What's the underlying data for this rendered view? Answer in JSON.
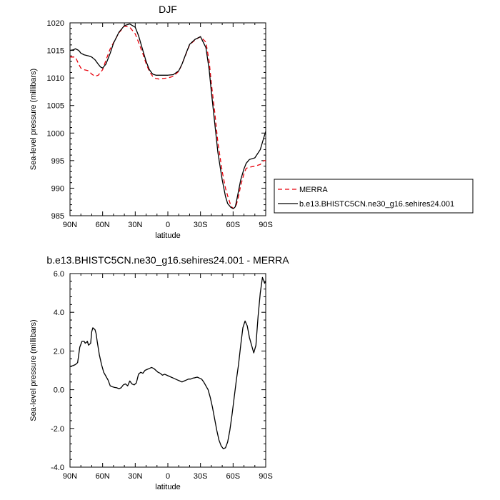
{
  "chart_data": [
    {
      "type": "line",
      "title": "DJF",
      "xlabel": "latitude",
      "ylabel": "Sea-level pressure (millibars)",
      "x_ticks": [
        "90N",
        "60N",
        "30N",
        "0",
        "30S",
        "60S",
        "90S"
      ],
      "x_tick_values": [
        -90,
        -60,
        -30,
        0,
        30,
        60,
        90
      ],
      "xlim": [
        -90,
        90
      ],
      "ylim": [
        985,
        1020
      ],
      "y_ticks": [
        "985",
        "990",
        "995",
        "1000",
        "1005",
        "1010",
        "1015",
        "1020"
      ],
      "y_tick_values": [
        985,
        990,
        995,
        1000,
        1005,
        1010,
        1015,
        1020
      ],
      "legend_position": "outside-right",
      "series": [
        {
          "name": "MERRA",
          "color": "#e8000b",
          "style": "dashed",
          "x": [
            -90,
            -87,
            -85,
            -82,
            -80,
            -77,
            -73,
            -70,
            -67,
            -64,
            -62,
            -60,
            -57,
            -53,
            -50,
            -45,
            -40,
            -35,
            -30,
            -27,
            -23,
            -20,
            -17,
            -14,
            -11,
            -8,
            -5,
            0,
            5,
            10,
            13,
            17,
            20,
            25,
            30,
            35,
            38,
            40,
            43,
            46,
            50,
            53,
            55,
            58,
            60,
            62,
            63,
            65,
            67,
            70,
            72,
            75,
            80,
            85,
            88,
            90
          ],
          "y": [
            1013.8,
            1013.8,
            1013.8,
            1012.5,
            1011.8,
            1011.5,
            1011.3,
            1010.7,
            1010.3,
            1010.5,
            1011.0,
            1011.5,
            1013.2,
            1015.3,
            1016.4,
            1018.2,
            1019.4,
            1019.2,
            1018.0,
            1016.5,
            1014.4,
            1012.6,
            1011.2,
            1010.3,
            1009.9,
            1009.8,
            1009.9,
            1010.0,
            1010.3,
            1011.2,
            1012.5,
            1014.5,
            1016.0,
            1016.9,
            1017.5,
            1016.5,
            1013.0,
            1009.0,
            1004.0,
            998.3,
            993.0,
            990.0,
            988.6,
            986.8,
            986.3,
            986.5,
            987.0,
            988.5,
            990.5,
            992.6,
            993.6,
            993.8,
            994.0,
            994.3,
            995.0,
            995.0
          ]
        },
        {
          "name": "b.e13.BHISTC5CN.ne30_g16.sehires24.001",
          "color": "#000000",
          "style": "solid",
          "x": [
            -90,
            -87,
            -85,
            -82,
            -80,
            -77,
            -73,
            -70,
            -67,
            -64,
            -62,
            -60,
            -57,
            -53,
            -50,
            -45,
            -40,
            -35,
            -30,
            -27,
            -23,
            -20,
            -17,
            -14,
            -11,
            -8,
            -5,
            0,
            5,
            10,
            13,
            17,
            20,
            25,
            30,
            35,
            38,
            40,
            43,
            46,
            50,
            53,
            55,
            58,
            60,
            62,
            63,
            65,
            67,
            70,
            72,
            75,
            80,
            85,
            88,
            90
          ],
          "y": [
            1015.0,
            1015.1,
            1015.3,
            1015.0,
            1014.5,
            1014.2,
            1014.0,
            1013.8,
            1013.3,
            1012.5,
            1012.0,
            1011.8,
            1012.5,
            1014.5,
            1016.3,
            1018.3,
            1019.5,
            1019.8,
            1019.2,
            1017.7,
            1015.0,
            1013.0,
            1011.5,
            1010.7,
            1010.5,
            1010.5,
            1010.5,
            1010.5,
            1010.6,
            1011.3,
            1012.5,
            1014.6,
            1016.1,
            1017.0,
            1017.5,
            1015.5,
            1011.5,
            1007.5,
            1002.0,
            996.5,
            991.5,
            988.5,
            987.2,
            986.5,
            986.3,
            986.6,
            987.5,
            989.5,
            991.5,
            993.5,
            994.5,
            995.2,
            995.5,
            997.0,
            999.0,
            1000.3
          ]
        }
      ]
    },
    {
      "type": "line",
      "title": "b.e13.BHISTC5CN.ne30_g16.sehires24.001 - MERRA",
      "xlabel": "latitude",
      "ylabel": "Sea-level pressure (millibars)",
      "x_ticks": [
        "90N",
        "60N",
        "30N",
        "0",
        "30S",
        "60S",
        "90S"
      ],
      "x_tick_values": [
        -90,
        -60,
        -30,
        0,
        30,
        60,
        90
      ],
      "xlim": [
        -90,
        90
      ],
      "ylim": [
        -4.0,
        6.0
      ],
      "y_ticks": [
        "-4.0",
        "-2.0",
        "0.0",
        "2.0",
        "4.0",
        "6.0"
      ],
      "y_tick_values": [
        -4.0,
        -2.0,
        0.0,
        2.0,
        4.0,
        6.0
      ],
      "series": [
        {
          "name": "",
          "color": "#000000",
          "style": "solid",
          "x": [
            -90,
            -87,
            -85,
            -83,
            -81,
            -79,
            -77,
            -76,
            -74,
            -73,
            -72,
            -71,
            -70,
            -69,
            -68,
            -67,
            -66,
            -65,
            -63,
            -61,
            -59,
            -57,
            -55,
            -53,
            -51,
            -49,
            -47,
            -45,
            -43,
            -41,
            -39,
            -37,
            -35,
            -33,
            -31,
            -29,
            -27,
            -25,
            -23,
            -21,
            -19,
            -17,
            -15,
            -13,
            -11,
            -9,
            -7,
            -5,
            -3,
            -1,
            1,
            3,
            5,
            7,
            9,
            11,
            13,
            15,
            17,
            19,
            21,
            23,
            25,
            27,
            29,
            31,
            33,
            35,
            37,
            39,
            41,
            43,
            45,
            47,
            49,
            51,
            53,
            55,
            57,
            59,
            61,
            63,
            65,
            67,
            69,
            71,
            73,
            75,
            77,
            79,
            81,
            83,
            85,
            87,
            89,
            90
          ],
          "y": [
            1.2,
            1.25,
            1.3,
            1.4,
            2.2,
            2.5,
            2.5,
            2.4,
            2.5,
            2.3,
            2.35,
            2.4,
            3.0,
            3.2,
            3.15,
            3.1,
            2.9,
            2.5,
            1.8,
            1.3,
            0.9,
            0.7,
            0.5,
            0.2,
            0.15,
            0.12,
            0.1,
            0.05,
            0.1,
            0.25,
            0.3,
            0.2,
            0.45,
            0.3,
            0.25,
            0.35,
            0.8,
            0.9,
            0.85,
            1.0,
            1.05,
            1.1,
            1.15,
            1.1,
            1.0,
            0.9,
            0.85,
            0.75,
            0.8,
            0.75,
            0.7,
            0.65,
            0.6,
            0.55,
            0.5,
            0.45,
            0.4,
            0.45,
            0.5,
            0.55,
            0.55,
            0.6,
            0.62,
            0.65,
            0.6,
            0.55,
            0.4,
            0.2,
            0.0,
            -0.4,
            -0.9,
            -1.5,
            -2.1,
            -2.6,
            -2.9,
            -3.05,
            -3.0,
            -2.7,
            -2.1,
            -1.3,
            -0.4,
            0.5,
            1.3,
            2.3,
            3.2,
            3.55,
            3.3,
            2.7,
            2.3,
            1.9,
            2.3,
            3.8,
            5.0,
            5.8,
            5.5,
            5.6
          ]
        }
      ]
    }
  ]
}
